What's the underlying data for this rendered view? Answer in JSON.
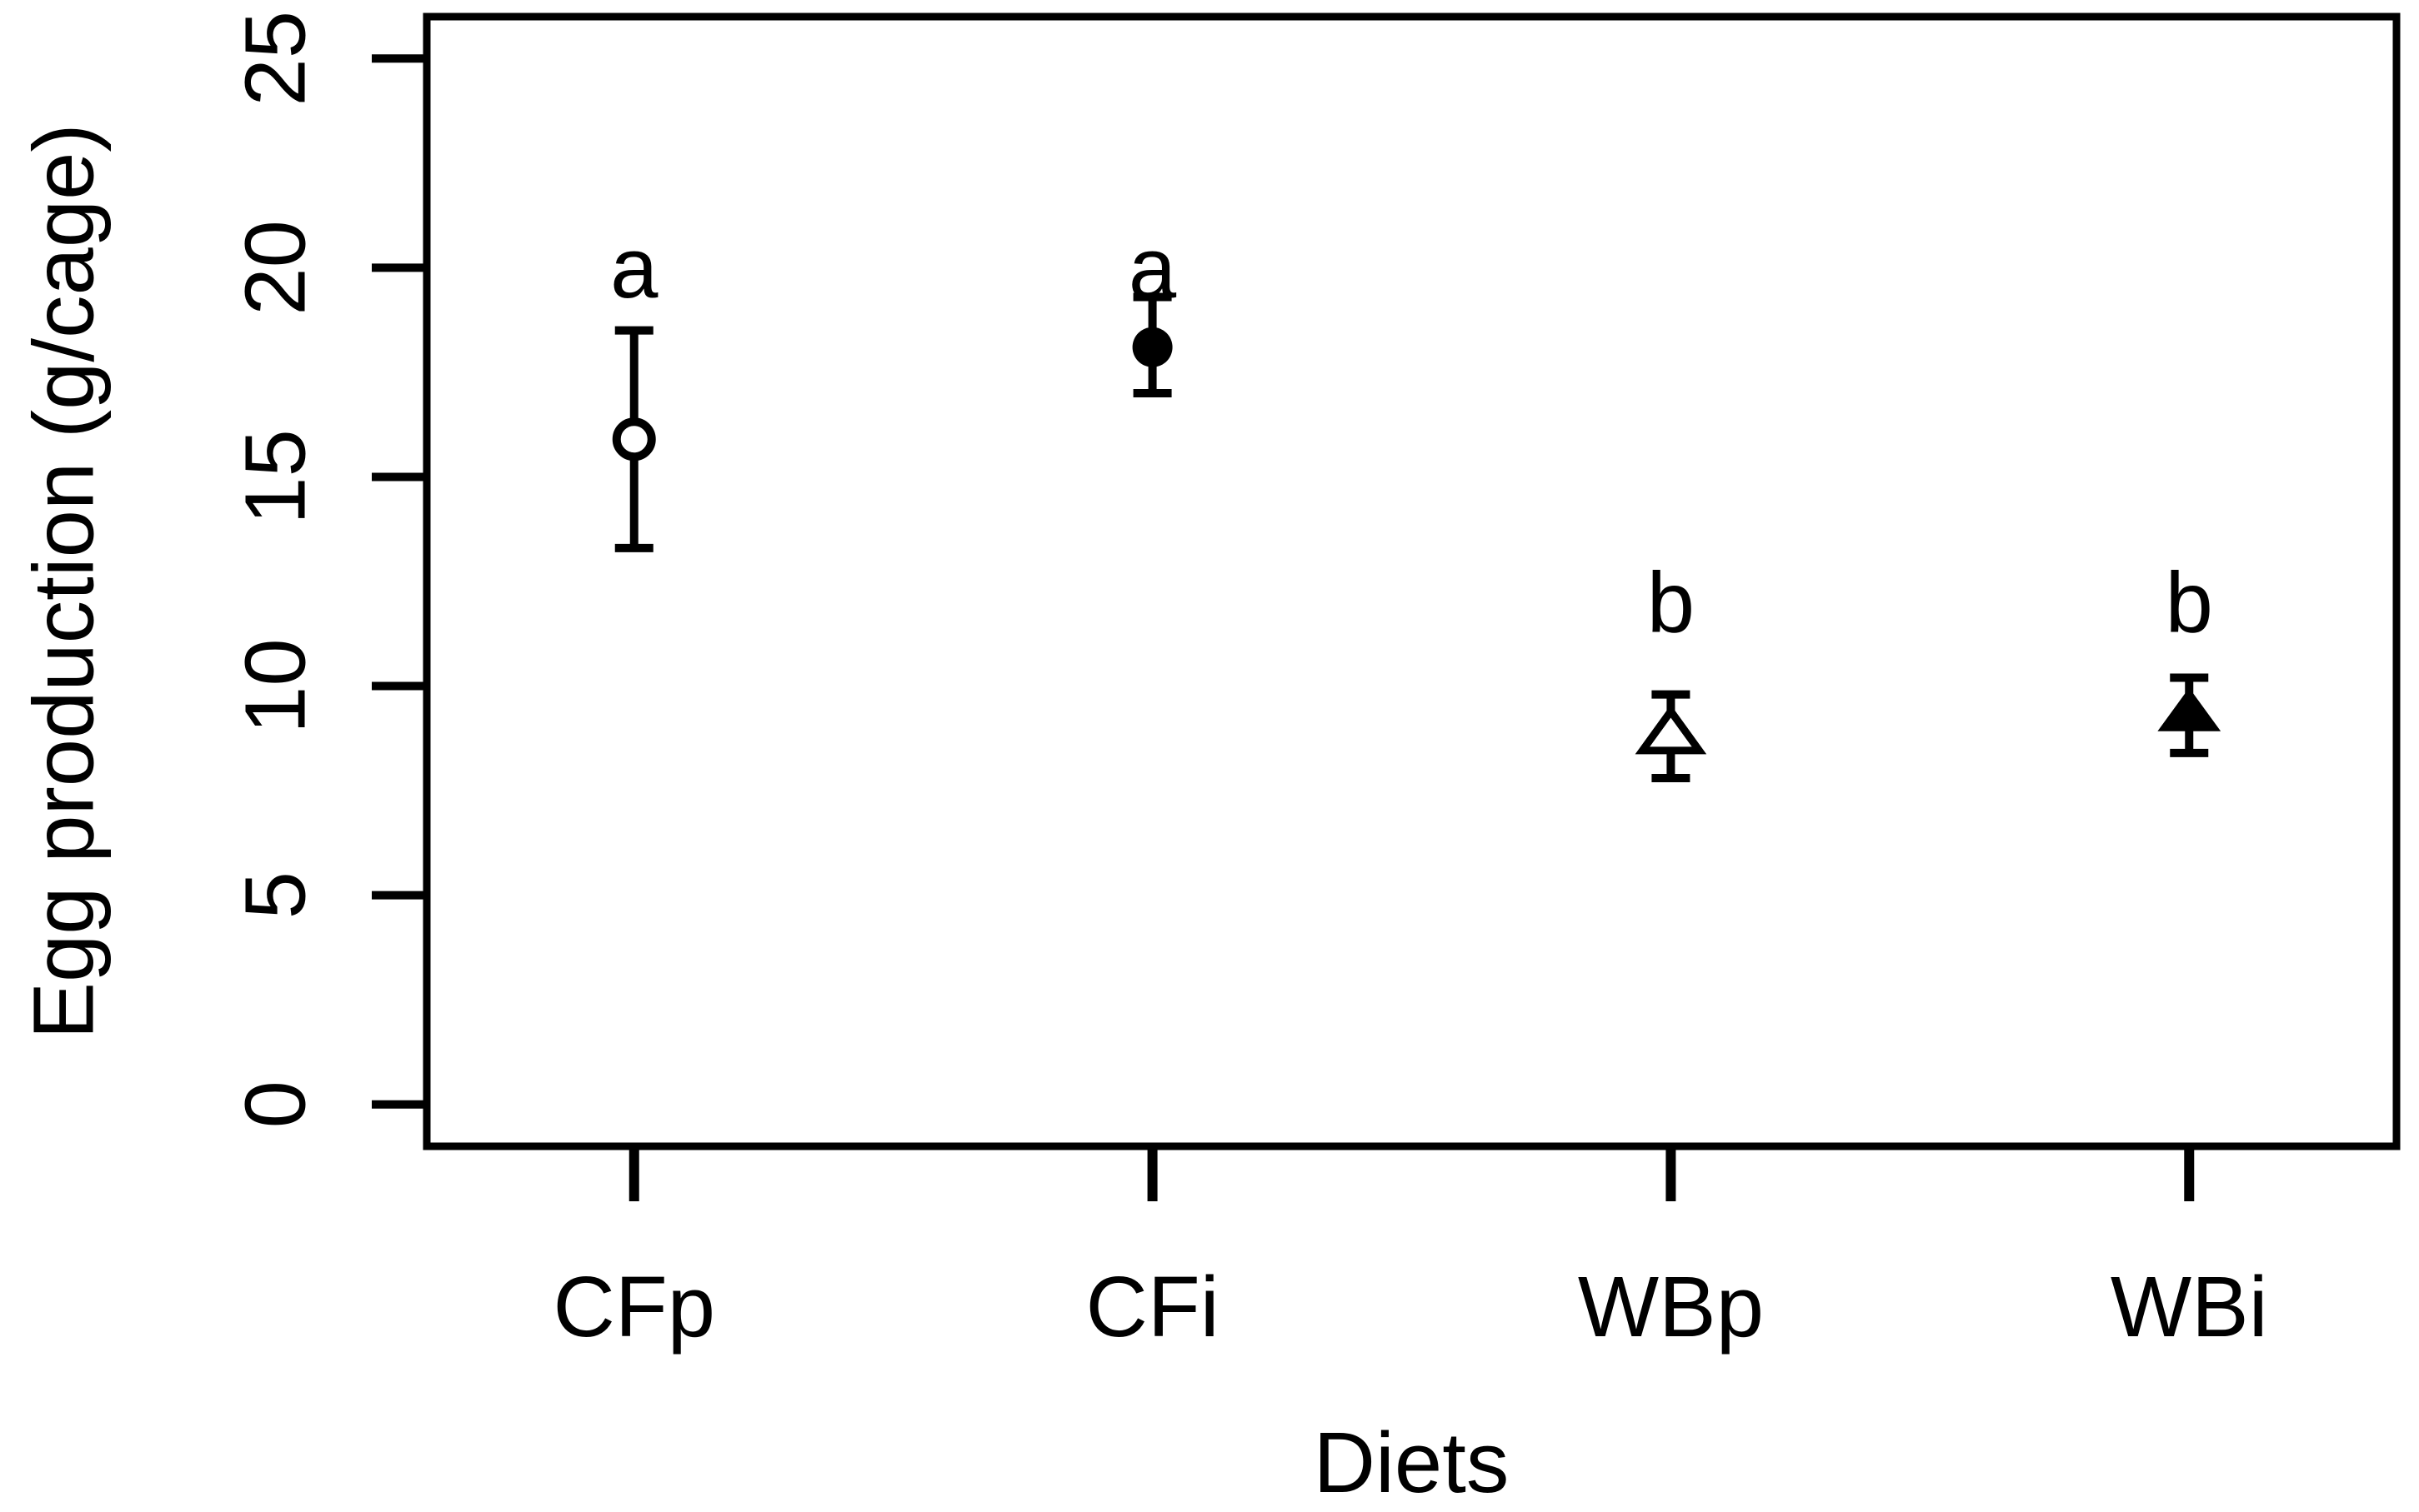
{
  "figure": {
    "y_axis": {
      "label": "Egg production (g/cage)",
      "ticks": [
        0,
        5,
        10,
        15,
        20,
        25
      ]
    },
    "x_axis": {
      "label": "Diets",
      "categories": [
        "CFp",
        "CFi",
        "WBp",
        "WBi"
      ]
    }
  },
  "chart_data": {
    "type": "scatter",
    "title": "",
    "xlabel": "Diets",
    "ylabel": "Egg production (g/cage)",
    "ylim": [
      0,
      25
    ],
    "y_ticks": [
      0,
      5,
      10,
      15,
      20,
      25
    ],
    "grid": false,
    "legend": "none",
    "categories": [
      "CFp",
      "CFi",
      "WBp",
      "WBi"
    ],
    "series": [
      {
        "name": "CFp",
        "mean": 15.9,
        "ci_lower": 13.3,
        "ci_upper": 18.5,
        "sig_letter": "a",
        "sig_letter_y": 20,
        "marker": "open-circle"
      },
      {
        "name": "CFi",
        "mean": 18.1,
        "ci_lower": 17.0,
        "ci_upper": 19.3,
        "sig_letter": "a",
        "sig_letter_y": 20,
        "marker": "filled-circle"
      },
      {
        "name": "WBp",
        "mean": 8.8,
        "ci_lower": 7.8,
        "ci_upper": 9.8,
        "sig_letter": "b",
        "sig_letter_y": 12,
        "marker": "open-triangle"
      },
      {
        "name": "WBi",
        "mean": 9.3,
        "ci_lower": 8.4,
        "ci_upper": 10.2,
        "sig_letter": "b",
        "sig_letter_y": 12,
        "marker": "filled-triangle"
      }
    ],
    "colors": {
      "foreground": "#000000",
      "background": "#ffffff"
    }
  }
}
